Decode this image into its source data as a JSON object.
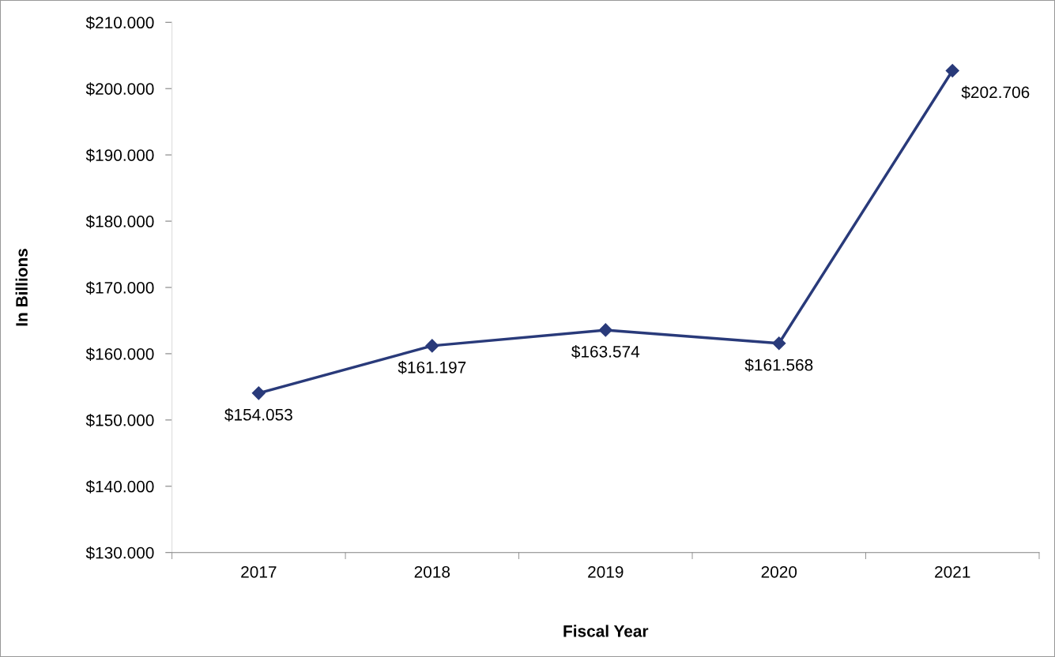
{
  "chart_data": {
    "type": "line",
    "xlabel": "Fiscal Year",
    "ylabel": "In Billions",
    "categories": [
      "2017",
      "2018",
      "2019",
      "2020",
      "2021"
    ],
    "series": [
      {
        "color": "#293a7a",
        "values": [
          154.053,
          161.197,
          163.574,
          161.568,
          202.706
        ],
        "value_labels": [
          "$154.053",
          "$161.197",
          "$163.574",
          "$161.568",
          "$202.706"
        ]
      }
    ],
    "ylim": [
      130,
      210
    ],
    "yticks": [
      {
        "value": 130,
        "label": "$130.000"
      },
      {
        "value": 140,
        "label": "$140.000"
      },
      {
        "value": 150,
        "label": "$150.000"
      },
      {
        "value": 160,
        "label": "$160.000"
      },
      {
        "value": 170,
        "label": "$170.000"
      },
      {
        "value": 180,
        "label": "$180.000"
      },
      {
        "value": 190,
        "label": "$190.000"
      },
      {
        "value": 200,
        "label": "$200.000"
      },
      {
        "value": 210,
        "label": "$210.000"
      }
    ],
    "marker": "diamond",
    "line_style": "solid",
    "grid": false,
    "legend": false
  }
}
